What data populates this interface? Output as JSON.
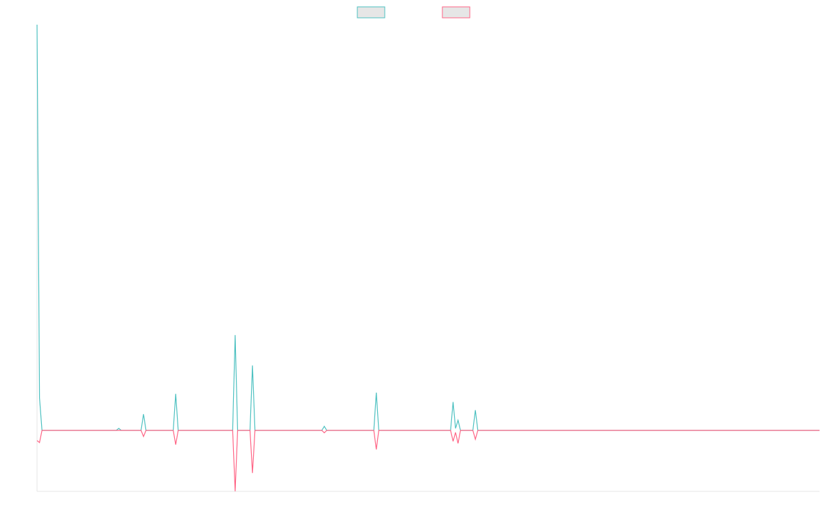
{
  "chart_data": {
    "type": "line",
    "x": [
      0,
      1,
      2,
      32,
      33,
      34,
      42,
      43,
      44,
      55,
      56,
      57,
      79,
      80,
      81,
      86,
      87,
      88,
      115,
      116,
      117,
      136,
      137,
      138,
      167,
      168,
      169,
      170,
      171,
      176,
      177,
      178,
      316
    ],
    "xlim": [
      0,
      316
    ],
    "ylim": [
      -15,
      100
    ],
    "legend": "top",
    "series": [
      {
        "color": "#4bc0c0",
        "values": [
          100,
          8,
          0,
          0,
          0.5,
          0,
          0,
          4,
          0,
          0,
          9,
          0,
          0,
          23.5,
          0,
          0,
          16,
          0,
          0,
          1,
          0,
          0,
          9.3,
          0,
          0,
          7,
          0.5,
          2.5,
          0,
          0,
          5,
          0,
          0
        ]
      },
      {
        "color": "#ff6384",
        "values": [
          -2.5,
          -3,
          0,
          0,
          0,
          0,
          0,
          -1.5,
          0,
          0,
          -3.5,
          0,
          0,
          -15,
          0,
          0,
          -10.5,
          0,
          0,
          -0.6,
          0,
          0,
          -4.7,
          0,
          0,
          -2.7,
          -0.5,
          -3.2,
          0,
          0,
          -2.2,
          0,
          0
        ]
      }
    ]
  }
}
